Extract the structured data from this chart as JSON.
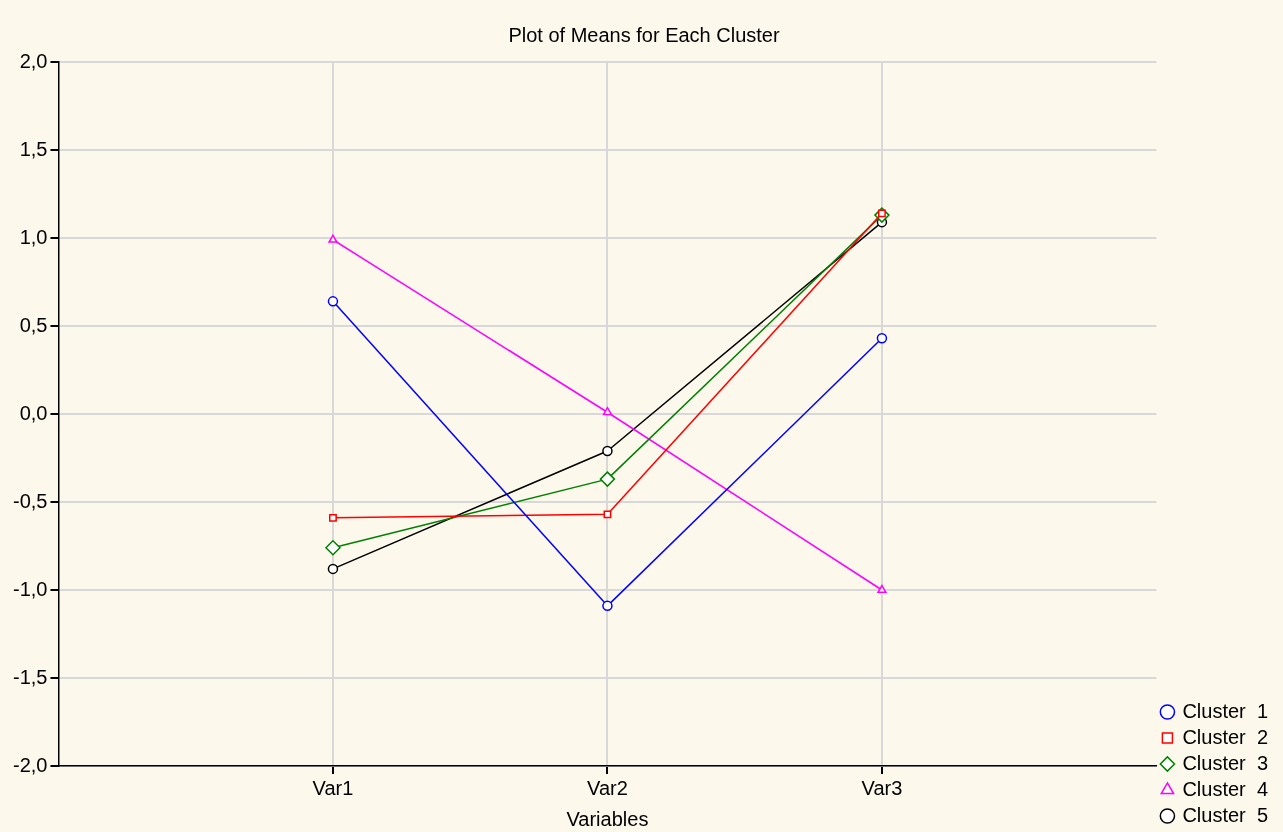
{
  "chart_data": {
    "type": "line",
    "title": "Plot of Means for Each Cluster",
    "xlabel": "Variables",
    "categories": [
      "Var1",
      "Var2",
      "Var3"
    ],
    "series": [
      {
        "name": "Cluster  1",
        "color": "#0000ff",
        "marker": "circle",
        "values": [
          0.64,
          -1.09,
          0.43
        ]
      },
      {
        "name": "Cluster  2",
        "color": "#ff0000",
        "marker": "square",
        "values": [
          -0.59,
          -0.57,
          1.14
        ]
      },
      {
        "name": "Cluster  3",
        "color": "#008000",
        "marker": "diamond",
        "values": [
          -0.76,
          -0.37,
          1.13
        ]
      },
      {
        "name": "Cluster  4",
        "color": "#ff00ff",
        "marker": "triangle",
        "values": [
          0.99,
          0.01,
          -1.0
        ]
      },
      {
        "name": "Cluster  5",
        "color": "#000000",
        "marker": "circle",
        "values": [
          -0.88,
          -0.21,
          1.09
        ]
      }
    ],
    "ylim": [
      -2,
      2
    ],
    "yticks": [
      {
        "value": -2,
        "label": "-2,0"
      },
      {
        "value": -1.5,
        "label": "-1,5"
      },
      {
        "value": -1,
        "label": "-1,0"
      },
      {
        "value": -0.5,
        "label": "-0,5"
      },
      {
        "value": 0,
        "label": "0,0"
      },
      {
        "value": 0.5,
        "label": "0,5"
      },
      {
        "value": 1,
        "label": "1,0"
      },
      {
        "value": 1.5,
        "label": "1,5"
      },
      {
        "value": 2,
        "label": "2,0"
      }
    ],
    "grid": true,
    "legend": "bottom right",
    "line_style": "solid"
  }
}
